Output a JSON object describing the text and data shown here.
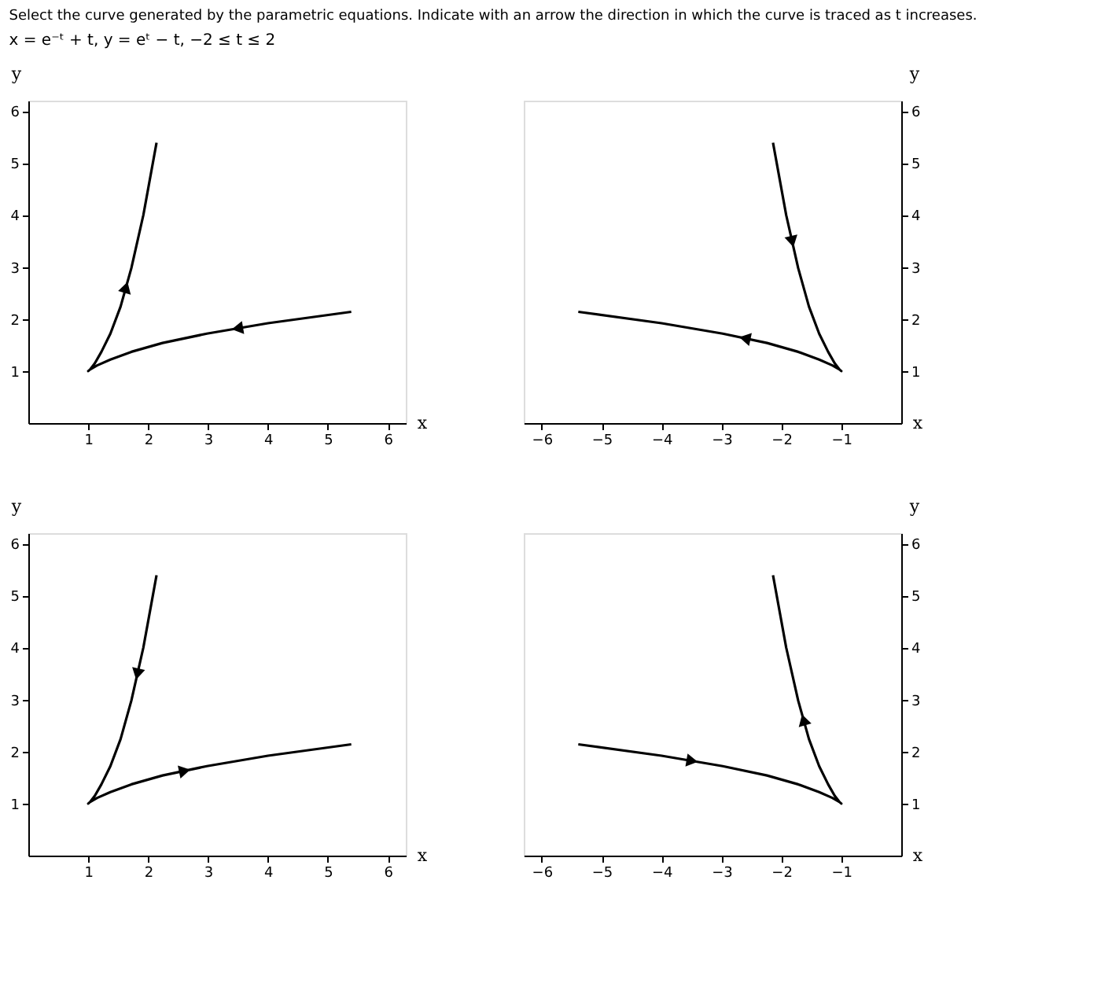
{
  "chart_data": [
    {
      "type": "line",
      "title": "Select the curve generated by the parametric equations. Indicate with an arrow the direction in which the curve is traced as t increases.",
      "subtitle": "x = e⁻ᵗ + t,   y = eᵗ − t,   −2 ≤ t ≤ 2",
      "xlabel": "x",
      "ylabel": "y",
      "xlim": [
        0,
        6.3
      ],
      "ylim": [
        0,
        6.2
      ],
      "xticks": [
        1,
        2,
        3,
        4,
        5,
        6
      ],
      "yticks": [
        1,
        2,
        3,
        4,
        5,
        6
      ],
      "grid": false,
      "marker": "none",
      "line_style": "solid",
      "x": [
        5.39,
        4.0,
        2.98,
        2.24,
        1.72,
        1.37,
        1.15,
        1.03,
        1.0,
        1.03,
        1.11,
        1.22,
        1.37,
        1.54,
        1.72,
        1.92,
        2.14
      ],
      "series": [
        {
          "color": "#000000",
          "values": [
            2.14,
            1.92,
            1.72,
            1.54,
            1.37,
            1.22,
            1.11,
            1.03,
            1.0,
            1.03,
            1.15,
            1.37,
            1.72,
            2.24,
            2.98,
            4.0,
            5.39
          ]
        }
      ]
    },
    {
      "type": "line",
      "xlabel": "x",
      "ylabel": "y",
      "xlim": [
        -6.3,
        0
      ],
      "ylim": [
        0,
        6.2
      ],
      "xticks": [
        -6,
        -5,
        -4,
        -3,
        -2,
        -1
      ],
      "yticks": [
        1,
        2,
        3,
        4,
        5,
        6
      ],
      "grid": false,
      "marker": "none",
      "line_style": "solid",
      "x": [
        -2.14,
        -1.92,
        -1.72,
        -1.54,
        -1.37,
        -1.22,
        -1.11,
        -1.03,
        -1.0,
        -1.03,
        -1.15,
        -1.37,
        -1.72,
        -2.24,
        -2.98,
        -4.0,
        -5.39
      ],
      "series": [
        {
          "color": "#000000",
          "values": [
            5.39,
            4.0,
            2.98,
            2.24,
            1.72,
            1.37,
            1.15,
            1.03,
            1.0,
            1.03,
            1.11,
            1.22,
            1.37,
            1.54,
            1.72,
            1.92,
            2.14
          ]
        }
      ]
    },
    {
      "type": "line",
      "xlabel": "x",
      "ylabel": "y",
      "xlim": [
        0,
        6.3
      ],
      "ylim": [
        0,
        6.2
      ],
      "xticks": [
        1,
        2,
        3,
        4,
        5,
        6
      ],
      "yticks": [
        1,
        2,
        3,
        4,
        5,
        6
      ],
      "grid": false,
      "marker": "none",
      "line_style": "solid",
      "x": [
        2.14,
        1.92,
        1.72,
        1.54,
        1.37,
        1.22,
        1.11,
        1.03,
        1.0,
        1.03,
        1.15,
        1.37,
        1.72,
        2.24,
        2.98,
        4.0,
        5.39
      ],
      "series": [
        {
          "color": "#000000",
          "values": [
            5.39,
            4.0,
            2.98,
            2.24,
            1.72,
            1.37,
            1.15,
            1.03,
            1.0,
            1.03,
            1.11,
            1.22,
            1.37,
            1.54,
            1.72,
            1.92,
            2.14
          ]
        }
      ]
    },
    {
      "type": "line",
      "xlabel": "x",
      "ylabel": "y",
      "xlim": [
        -6.3,
        0
      ],
      "ylim": [
        0,
        6.2
      ],
      "xticks": [
        -6,
        -5,
        -4,
        -3,
        -2,
        -1
      ],
      "yticks": [
        1,
        2,
        3,
        4,
        5,
        6
      ],
      "grid": false,
      "marker": "none",
      "line_style": "solid",
      "x": [
        -5.39,
        -4.0,
        -2.98,
        -2.24,
        -1.72,
        -1.37,
        -1.15,
        -1.03,
        -1.0,
        -1.03,
        -1.11,
        -1.22,
        -1.37,
        -1.54,
        -1.72,
        -1.92,
        -2.14
      ],
      "series": [
        {
          "color": "#000000",
          "values": [
            2.14,
            1.92,
            1.72,
            1.54,
            1.37,
            1.22,
            1.11,
            1.03,
            1.0,
            1.03,
            1.15,
            1.37,
            1.72,
            2.24,
            2.98,
            4.0,
            5.39
          ]
        }
      ]
    }
  ]
}
